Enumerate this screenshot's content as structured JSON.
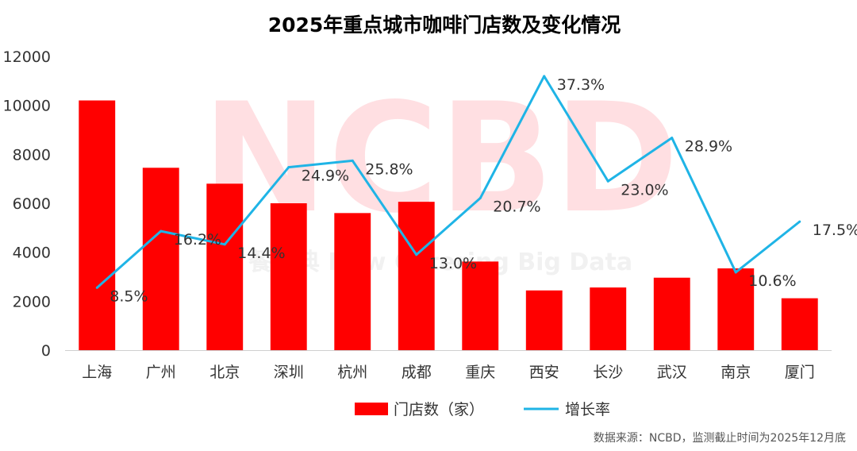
{
  "chart_data": {
    "type": "bar+line",
    "title": "2025年重点城市咖啡门店数及变化情况",
    "categories": [
      "上海",
      "广州",
      "北京",
      "深圳",
      "杭州",
      "成都",
      "重庆",
      "西安",
      "长沙",
      "武汉",
      "南京",
      "厦门"
    ],
    "series": [
      {
        "name": "门店数（家）",
        "type": "bar",
        "axis": "left",
        "color": "#ff0000",
        "values": [
          10200,
          7450,
          6800,
          6000,
          5600,
          6060,
          3620,
          2440,
          2560,
          2960,
          3340,
          2120
        ]
      },
      {
        "name": "增长率",
        "type": "line",
        "axis": "right",
        "color": "#1fb4e6",
        "values": [
          8.5,
          16.2,
          14.4,
          24.9,
          25.8,
          13.0,
          20.7,
          37.3,
          23.0,
          28.9,
          10.6,
          17.5
        ],
        "labels": [
          "8.5%",
          "16.2%",
          "14.4%",
          "24.9%",
          "25.8%",
          "13.0%",
          "20.7%",
          "37.3%",
          "23.0%",
          "28.9%",
          "10.6%",
          "17.5%"
        ]
      }
    ],
    "ylim": [
      0,
      12000
    ],
    "yticks": [
      0,
      2000,
      4000,
      6000,
      8000,
      10000,
      12000
    ],
    "y2lim": [
      0,
      40
    ],
    "legend_position": "bottom",
    "grid": false
  },
  "watermark": {
    "main": "NCBD",
    "sub": "餐宝典 New Catering Big Data"
  },
  "source_note": "数据来源：NCBD，监测截止时间为2025年12月底"
}
